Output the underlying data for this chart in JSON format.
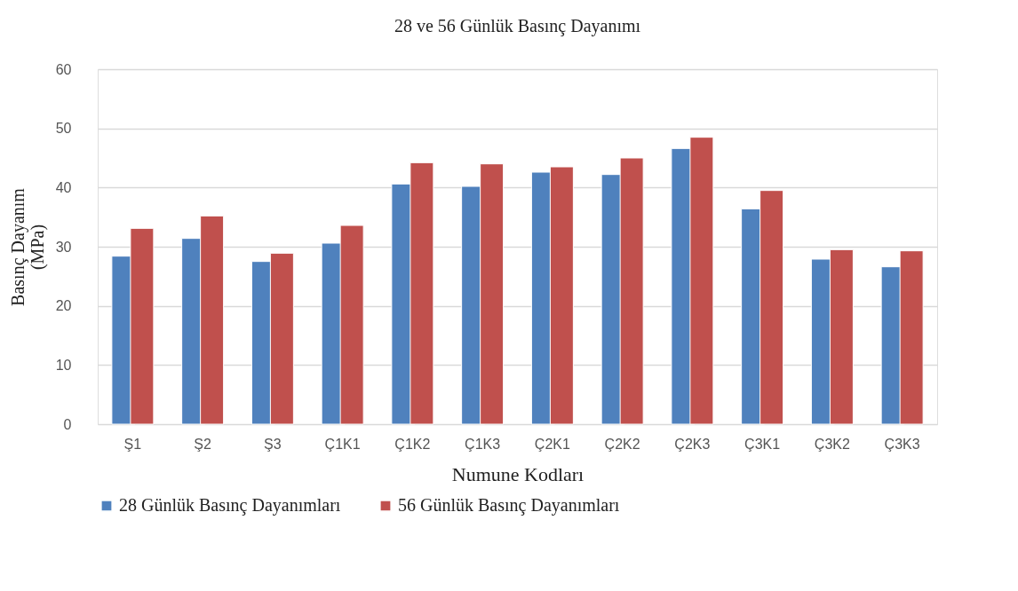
{
  "chart_data": {
    "type": "bar",
    "title": "28 ve 56 Günlük Basınç Dayanımı",
    "xlabel": "Numune Kodları",
    "ylabel": "Basınç Dayanım (MPa)",
    "categories": [
      "Ş1",
      "Ş2",
      "Ş3",
      "Ç1K1",
      "Ç1K2",
      "Ç1K3",
      "Ç2K1",
      "Ç2K2",
      "Ç2K3",
      "Ç3K1",
      "Ç3K2",
      "Ç3K3"
    ],
    "series": [
      {
        "name": "28 Günlük Basınç Dayanımları",
        "color": "#4f81bd",
        "values": [
          28.4,
          31.4,
          27.5,
          30.6,
          40.6,
          40.2,
          42.6,
          42.2,
          46.6,
          36.4,
          27.9,
          26.6
        ]
      },
      {
        "name": "56 Günlük Basınç Dayanımları",
        "color": "#c0504d",
        "values": [
          33.1,
          35.2,
          28.9,
          33.6,
          44.2,
          44.0,
          43.5,
          45.0,
          48.5,
          39.5,
          29.5,
          29.3
        ]
      }
    ],
    "ylim": [
      0,
      60
    ],
    "yticks": [
      0,
      10,
      20,
      30,
      40,
      50,
      60
    ],
    "grid": "y",
    "legend": "bottom"
  }
}
